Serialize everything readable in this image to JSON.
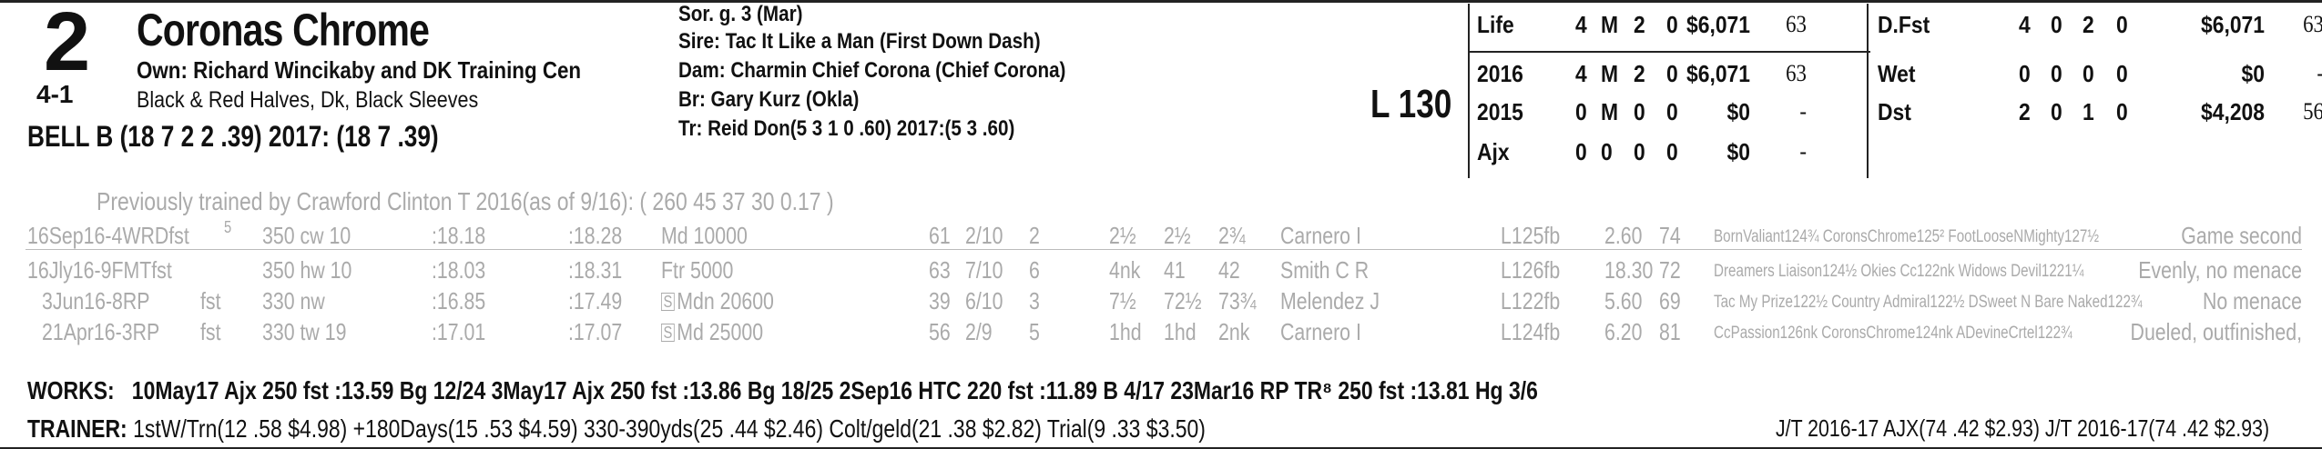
{
  "header": {
    "program_number": "2",
    "odds": "4-1",
    "horse_name": "Coronas Chrome",
    "owner": "Own: Richard Wincikaby and DK Training Cen",
    "silks": "Black & Red Halves, Dk, Black Sleeves",
    "jockey": "BELL B (18 7 2 2 .39) 2017: (18 7 .39)",
    "sex_age": "Sor. g. 3 (Mar)",
    "sire": "Sire: Tac It Like a Man (First Down Dash)",
    "dam": "Dam: Charmin Chief Corona (Chief Corona)",
    "breeder": "Br:   Gary Kurz (Okla)",
    "trainer_line": "Tr:   Reid Don(5 3 1 0 .60)  2017:(5 3 .60)",
    "weight": "L 130"
  },
  "stats_left": [
    {
      "label": "Life",
      "c1": "4",
      "c2": "M",
      "c3": "2",
      "c4": "0",
      "earn": "$6,071",
      "sr": "63"
    },
    {
      "label": "2016",
      "c1": "4",
      "c2": "M",
      "c3": "2",
      "c4": "0",
      "earn": "$6,071",
      "sr": "63"
    },
    {
      "label": "2015",
      "c1": "0",
      "c2": "M",
      "c3": "0",
      "c4": "0",
      "earn": "$0",
      "sr": "-"
    },
    {
      "label": "Ajx",
      "c1": "0",
      "c2": "0",
      "c3": "0",
      "c4": "0",
      "earn": "$0",
      "sr": "-"
    }
  ],
  "stats_right": [
    {
      "label": "D.Fst",
      "c1": "4",
      "c2": "0",
      "c3": "2",
      "c4": "0",
      "earn": "$6,071",
      "sr": "63"
    },
    {
      "label": "Wet",
      "c1": "0",
      "c2": "0",
      "c3": "0",
      "c4": "0",
      "earn": "$0",
      "sr": "-"
    },
    {
      "label": "Dst",
      "c1": "2",
      "c2": "0",
      "c3": "1",
      "c4": "0",
      "earn": "$4,208",
      "sr": "56"
    }
  ],
  "previous_trainer": "Previously trained by Crawford Clinton T 2016(as of 9/16): ( 260 45 37 30 0.17 )",
  "races": [
    {
      "date": "16Sep16-4WRDfst",
      "dsup": "5",
      "dist": "350 cw 10",
      "f1": ":18.18",
      "f2": ":18.28",
      "class": "Md 10000",
      "mdn": "",
      "sr": "61",
      "pp": "2/10",
      "st": "2",
      "c1": "2½",
      "c2": "2½",
      "fin": "2¾",
      "jky": "Carnero I",
      "med": "L125fb",
      "odds": "2.60",
      "spd": "74",
      "comment": "BornValiant124¾ CoronsChrome125² FootLooseNMighty127½",
      "trip": "Game second"
    },
    {
      "date": "16Jly16-9FMTfst",
      "dsup": "",
      "dist": "350 hw 10",
      "f1": ":18.03",
      "f2": ":18.31",
      "class": "Ftr 5000",
      "mdn": "",
      "sr": "63",
      "pp": "7/10",
      "st": "6",
      "c1": "4nk",
      "c2": "41",
      "fin": "42",
      "jky": "Smith C R",
      "med": "L126fb",
      "odds": "18.30",
      "spd": "72",
      "comment": "Dreamers Liaison124½ Okies Cc122nk Widows Devil1221¼",
      "trip": "Evenly, no menace"
    },
    {
      "date": "3Jun16-8RP",
      "dsup": "fst",
      "dist": "330 nw",
      "f1": ":16.85",
      "f2": ":17.49",
      "class": "Mdn 20600",
      "mdn": "S",
      "sr": "39",
      "pp": "6/10",
      "st": "3",
      "c1": "7½",
      "c2": "72½",
      "fin": "73¾",
      "jky": "Melendez J",
      "med": "L122fb",
      "odds": "5.60",
      "spd": "69",
      "comment": "Tac My Prize122½ Country Admiral122½ DSweet N Bare Naked122¾",
      "trip": "No menace"
    },
    {
      "date": "21Apr16-3RP",
      "dsup": "fst",
      "dist": "330 tw 19",
      "f1": ":17.01",
      "f2": ":17.07",
      "class": "Md 25000",
      "mdn": "S",
      "sr": "56",
      "pp": "2/9",
      "st": "5",
      "c1": "1hd",
      "c2": "1hd",
      "fin": "2nk",
      "jky": "Carnero I",
      "med": "L124fb",
      "odds": "6.20",
      "spd": "81",
      "comment": "CcPassion126nk CoronsChrome124nk ADevineCrtel122¾",
      "trip": "Dueled, outfinished,"
    }
  ],
  "works": {
    "label": "WORKS:",
    "text": "10May17 Ajx 250 fst :13.59 Bg 12/24   3May17 Ajx 250 fst :13.86 Bg 18/25   2Sep16 HTC 220 fst :11.89 B 4/17   23Mar16 RP TR⁸ 250 fst :13.81 Hg 3/6"
  },
  "trainer_stats": {
    "label": "TRAINER:",
    "text": "1stW/Trn(12 .58 $4.98) +180Days(15 .53 $4.59) 330-390yds(25 .44 $2.46) Colt/geld(21 .38 $2.82) Trial(9 .33 $3.50)",
    "jt": "J/T 2016-17 AJX(74 .42 $2.93)  J/T 2016-17(74 .42 $2.93)"
  }
}
